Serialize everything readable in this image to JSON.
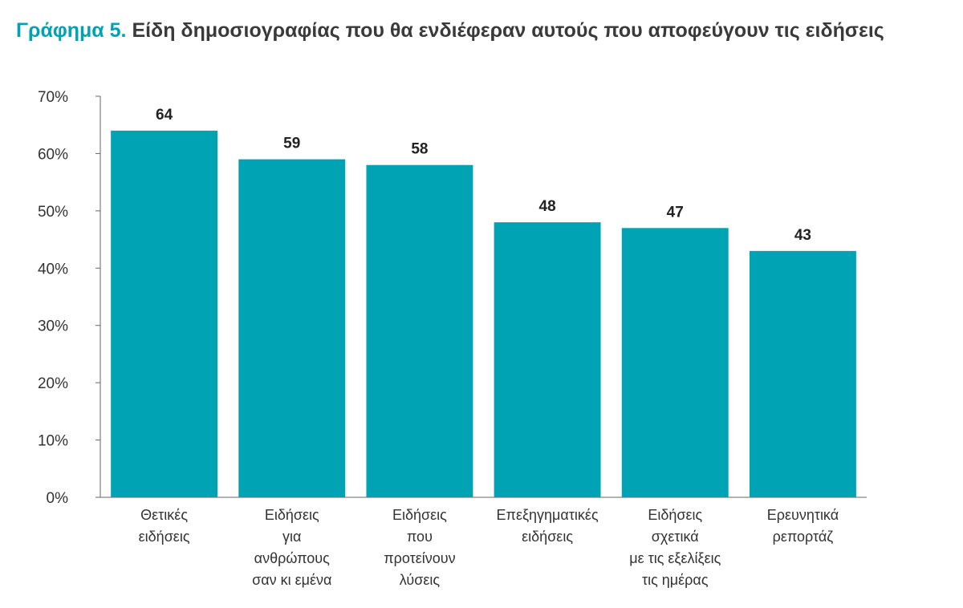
{
  "title": {
    "lead": "Γράφημα 5.",
    "text": "Είδη δημοσιογραφίας που θα ενδιέφεραν αυτούς που αποφεύγουν τις ειδήσεις"
  },
  "colors": {
    "bar": "#00a3b4",
    "lead": "#00a3b4",
    "axis": "#666666"
  },
  "chart_data": {
    "type": "bar",
    "categories": [
      [
        "Θετικές",
        "ειδήσεις"
      ],
      [
        "Ειδήσεις",
        "για",
        "ανθρώπους",
        "σαν κι εμένα"
      ],
      [
        "Ειδήσεις",
        "που",
        "προτείνουν",
        "λύσεις"
      ],
      [
        "Επεξηγηματικές",
        "ειδήσεις"
      ],
      [
        "Ειδήσεις",
        "σχετικά",
        "με τις εξελίξεις",
        "τις ημέρας"
      ],
      [
        "Ερευνητικά",
        "ρεπορτάζ"
      ]
    ],
    "values": [
      64,
      59,
      58,
      48,
      47,
      43
    ],
    "value_labels": [
      "64",
      "59",
      "58",
      "48",
      "47",
      "43"
    ],
    "yticks": [
      "0%",
      "10%",
      "20%",
      "30%",
      "40%",
      "50%",
      "60%",
      "70%"
    ],
    "ylim": [
      0,
      70
    ],
    "xlabel": "",
    "ylabel": "",
    "grid": false,
    "legend": "none"
  }
}
